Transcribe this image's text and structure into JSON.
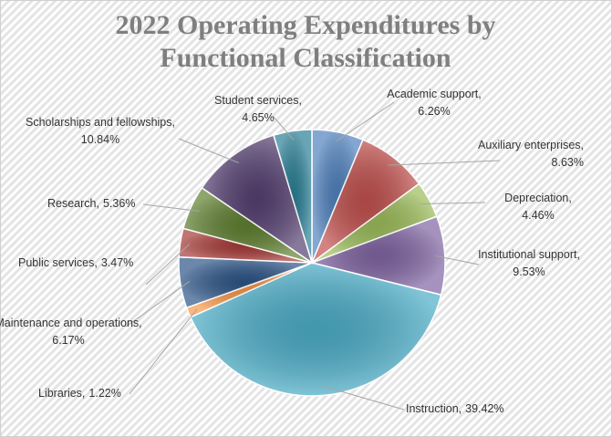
{
  "chart_data": {
    "type": "pie",
    "title": "2022 Operating Expenditures by Functional Classification",
    "categories": [
      "Academic support,",
      "Auxiliary enterprises,",
      "Depreciation,",
      "Institutional support,",
      "Instruction,",
      "Libraries,",
      "Maintenance and operations,",
      "Public services,",
      "Research,",
      "Scholarships and fellowships,",
      "Student services,"
    ],
    "values": [
      6.26,
      8.63,
      4.46,
      9.53,
      39.42,
      1.22,
      6.17,
      3.47,
      5.36,
      10.84,
      4.65
    ],
    "value_labels": [
      "6.26%",
      "8.63%",
      "4.46%",
      "9.53%",
      "39.42%",
      "1.22%",
      "6.17%",
      "3.47%",
      "5.36%",
      "10.84%",
      "4.65%"
    ],
    "colors": [
      "#4f81bd",
      "#c0504d",
      "#9bbb59",
      "#8064a2",
      "#4bacc6",
      "#f79646",
      "#2c5486",
      "#a63a37",
      "#5f7f30",
      "#553f70",
      "#2a7f95"
    ]
  }
}
